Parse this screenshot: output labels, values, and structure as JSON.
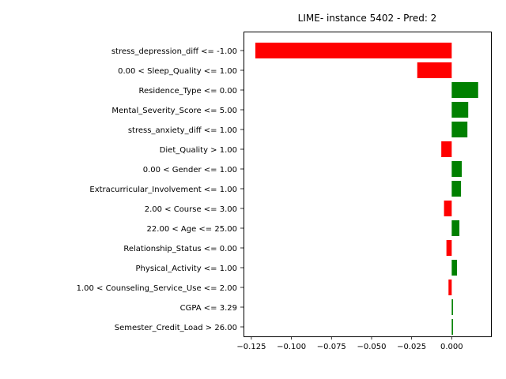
{
  "chart_data": {
    "type": "bar",
    "orientation": "horizontal",
    "title": "LIME- instance 5402 - Pred: 2",
    "xlabel": "",
    "ylabel": "",
    "xlim": [
      -0.1299,
      0.0245
    ],
    "xticks": [
      -0.125,
      -0.1,
      -0.075,
      -0.05,
      -0.025,
      0.0
    ],
    "xtick_labels": [
      "−0.125",
      "−0.100",
      "−0.075",
      "−0.050",
      "−0.025",
      "0.000"
    ],
    "grid": false,
    "categories": [
      "stress_depression_diff <= -1.00",
      "0.00 < Sleep_Quality <= 1.00",
      "Residence_Type <= 0.00",
      "Mental_Severity_Score <= 5.00",
      "stress_anxiety_diff <= 1.00",
      "Diet_Quality > 1.00",
      "0.00 < Gender <= 1.00",
      "Extracurricular_Involvement <= 1.00",
      "2.00 < Course <= 3.00",
      "22.00 < Age <= 25.00",
      "Relationship_Status <= 0.00",
      "Physical_Activity <= 1.00",
      "1.00 < Counseling_Service_Use <= 2.00",
      "CGPA <= 3.29",
      "Semester_Credit_Load > 26.00"
    ],
    "values": [
      -0.1225,
      -0.0215,
      0.0165,
      0.0103,
      0.0098,
      -0.0065,
      0.0063,
      0.0058,
      -0.0048,
      0.0048,
      -0.0033,
      0.0033,
      -0.002,
      0.0008,
      0.0008
    ],
    "colors": {
      "positive": "#008000",
      "negative": "#ff0000"
    }
  }
}
